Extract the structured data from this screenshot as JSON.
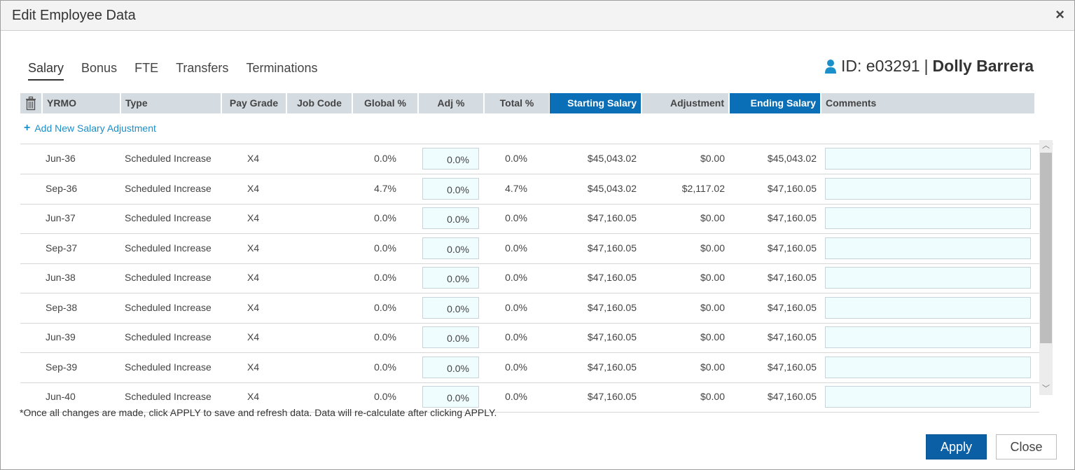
{
  "dialog": {
    "title": "Edit Employee Data",
    "close_glyph": "×"
  },
  "tabs": [
    {
      "label": "Salary",
      "active": true
    },
    {
      "label": "Bonus"
    },
    {
      "label": "FTE"
    },
    {
      "label": "Transfers"
    },
    {
      "label": "Terminations"
    }
  ],
  "employee": {
    "icon": "person-icon",
    "id_label": "ID: e03291",
    "separator": "|",
    "name": "Dolly Barrera"
  },
  "table": {
    "delete_icon": "trash-icon",
    "columns": [
      "YRMO",
      "Type",
      "Pay Grade",
      "Job Code",
      "Global %",
      "Adj %",
      "Total %",
      "Starting Salary",
      "Adjustment",
      "Ending Salary",
      "Comments"
    ],
    "add_link": "Add New Salary Adjustment",
    "rows": [
      {
        "yrmo": "Jun-36",
        "type": "Scheduled Increase",
        "pay_grade": "X4",
        "job_code": "",
        "global": "0.0%",
        "adj": "0.0%",
        "total": "0.0%",
        "start": "$45,043.02",
        "adjustment": "$0.00",
        "end": "$45,043.02",
        "comment": ""
      },
      {
        "yrmo": "Sep-36",
        "type": "Scheduled Increase",
        "pay_grade": "X4",
        "job_code": "",
        "global": "4.7%",
        "adj": "0.0%",
        "total": "4.7%",
        "start": "$45,043.02",
        "adjustment": "$2,117.02",
        "end": "$47,160.05",
        "comment": ""
      },
      {
        "yrmo": "Jun-37",
        "type": "Scheduled Increase",
        "pay_grade": "X4",
        "job_code": "",
        "global": "0.0%",
        "adj": "0.0%",
        "total": "0.0%",
        "start": "$47,160.05",
        "adjustment": "$0.00",
        "end": "$47,160.05",
        "comment": ""
      },
      {
        "yrmo": "Sep-37",
        "type": "Scheduled Increase",
        "pay_grade": "X4",
        "job_code": "",
        "global": "0.0%",
        "adj": "0.0%",
        "total": "0.0%",
        "start": "$47,160.05",
        "adjustment": "$0.00",
        "end": "$47,160.05",
        "comment": ""
      },
      {
        "yrmo": "Jun-38",
        "type": "Scheduled Increase",
        "pay_grade": "X4",
        "job_code": "",
        "global": "0.0%",
        "adj": "0.0%",
        "total": "0.0%",
        "start": "$47,160.05",
        "adjustment": "$0.00",
        "end": "$47,160.05",
        "comment": ""
      },
      {
        "yrmo": "Sep-38",
        "type": "Scheduled Increase",
        "pay_grade": "X4",
        "job_code": "",
        "global": "0.0%",
        "adj": "0.0%",
        "total": "0.0%",
        "start": "$47,160.05",
        "adjustment": "$0.00",
        "end": "$47,160.05",
        "comment": ""
      },
      {
        "yrmo": "Jun-39",
        "type": "Scheduled Increase",
        "pay_grade": "X4",
        "job_code": "",
        "global": "0.0%",
        "adj": "0.0%",
        "total": "0.0%",
        "start": "$47,160.05",
        "adjustment": "$0.00",
        "end": "$47,160.05",
        "comment": ""
      },
      {
        "yrmo": "Sep-39",
        "type": "Scheduled Increase",
        "pay_grade": "X4",
        "job_code": "",
        "global": "0.0%",
        "adj": "0.0%",
        "total": "0.0%",
        "start": "$47,160.05",
        "adjustment": "$0.00",
        "end": "$47,160.05",
        "comment": ""
      },
      {
        "yrmo": "Jun-40",
        "type": "Scheduled Increase",
        "pay_grade": "X4",
        "job_code": "",
        "global": "0.0%",
        "adj": "0.0%",
        "total": "0.0%",
        "start": "$47,160.05",
        "adjustment": "$0.00",
        "end": "$47,160.05",
        "comment": ""
      }
    ]
  },
  "footer": {
    "note": "*Once all changes are made, click APPLY to save and refresh data. Data will re-calculate after clicking APPLY.",
    "apply_label": "Apply",
    "close_label": "Close"
  },
  "colors": {
    "accent_blue": "#0b6fb8",
    "apply_blue": "#0b5fa5",
    "link_blue": "#1a8fc9",
    "header_gray": "#d4dbe1",
    "input_bg": "#f0fdff"
  }
}
